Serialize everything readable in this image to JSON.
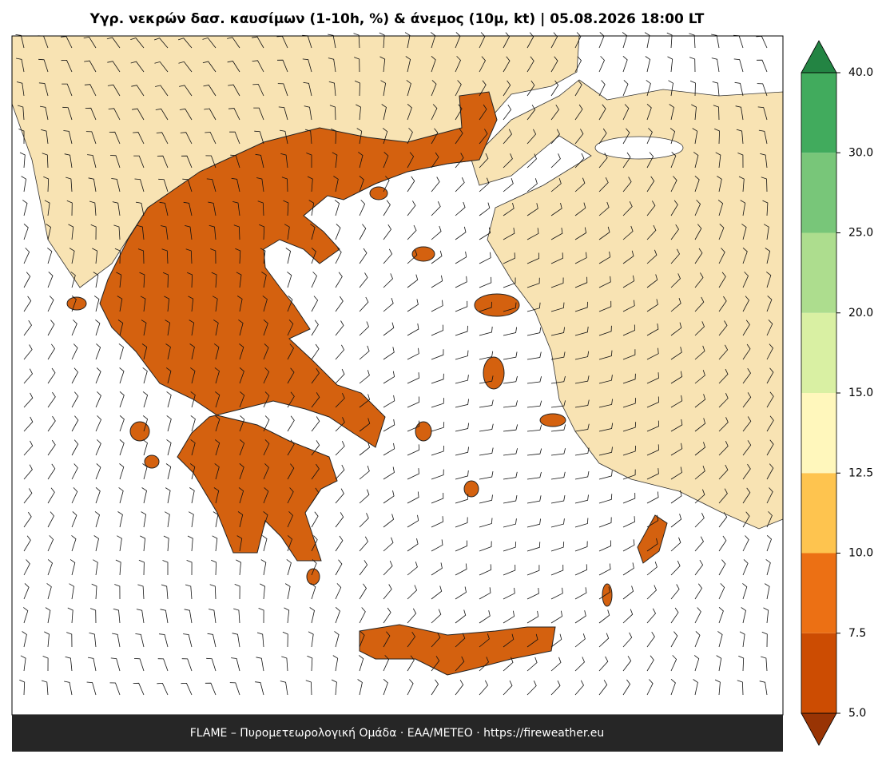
{
  "title": "Υγρ. νεκρών δασ. καυσίμων (1-10h, %) & άνεμος (10μ, kt)  |  05.08.2026 18:00 LT",
  "footer": "FLAME – Πυρομετεωρολογική Ομάδα · ΕΑΑ/METEO · https://fireweather.eu",
  "colorbar": {
    "extend": "both",
    "spacing": "uniform",
    "ticks": [
      {
        "value": 5,
        "label": "5.0"
      },
      {
        "value": 7.5,
        "label": "7.5"
      },
      {
        "value": 10,
        "label": "10.0"
      },
      {
        "value": 12.5,
        "label": "12.5"
      },
      {
        "value": 15,
        "label": "15.0"
      },
      {
        "value": 20,
        "label": "20.0"
      },
      {
        "value": 25,
        "label": "25.0"
      },
      {
        "value": 30,
        "label": "30.0"
      },
      {
        "value": 40,
        "label": "40.0"
      }
    ],
    "colors": [
      "#993404",
      "#cc4c02",
      "#ec7014",
      "#fec44f",
      "#fff7bc",
      "#d9f0a3",
      "#addd8e",
      "#78c679",
      "#41ab5d",
      "#238443"
    ]
  }
}
